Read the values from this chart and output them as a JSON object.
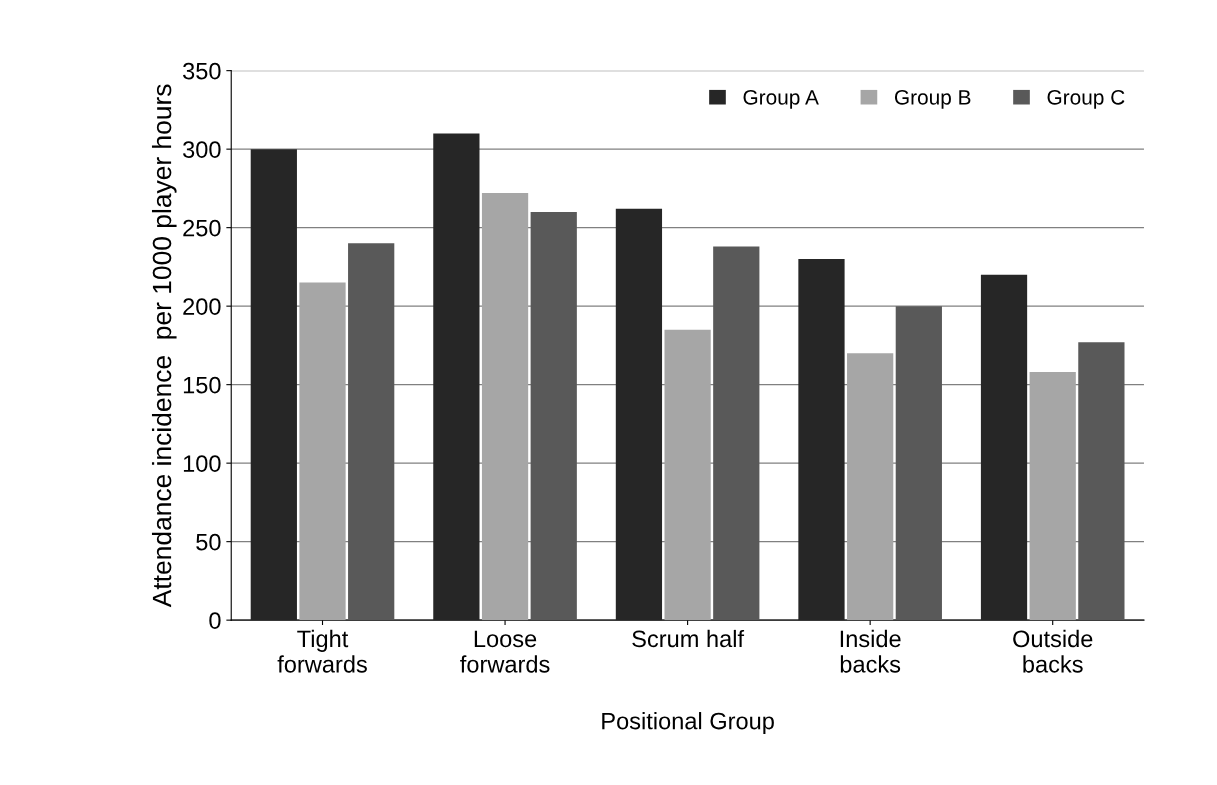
{
  "chart_data": {
    "type": "bar",
    "xlabel": "Positional Group",
    "ylabel": "Attendance incidence  per 1000 player hours",
    "categories": [
      "Tight\nforwards",
      "Loose\nforwards",
      "Scrum half",
      "Inside\nbacks",
      "Outside\nbacks"
    ],
    "series": [
      {
        "name": "Group A",
        "color": "#262626",
        "values": [
          300,
          310,
          262,
          230,
          220
        ]
      },
      {
        "name": "Group B",
        "color": "#a6a6a6",
        "values": [
          215,
          272,
          185,
          170,
          158
        ]
      },
      {
        "name": "Group C",
        "color": "#595959",
        "values": [
          240,
          260,
          238,
          200,
          177
        ]
      }
    ],
    "ylim": [
      0,
      350
    ],
    "yticks": [
      0,
      50,
      100,
      150,
      200,
      250,
      300,
      350
    ],
    "grid": "y",
    "legend": "top right"
  }
}
